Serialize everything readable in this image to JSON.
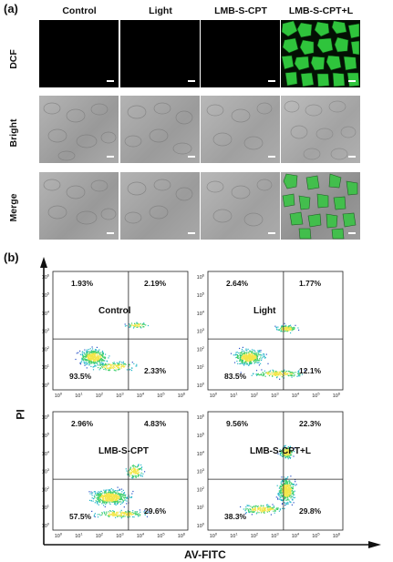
{
  "panel_a": {
    "label": "(a)",
    "columns": [
      "Control",
      "Light",
      "LMB-S-CPT",
      "LMB-S-CPT+L"
    ],
    "rows": [
      "DCF",
      "Bright",
      "Merge"
    ]
  },
  "panel_b": {
    "label": "(b)",
    "x_axis_title": "AV-FITC",
    "y_axis_title": "PI",
    "tick_labels": [
      "10",
      "10",
      "10",
      "10",
      "10",
      "10",
      "10"
    ],
    "tick_exponents": [
      "0",
      "1",
      "2",
      "3",
      "4",
      "5",
      "6"
    ],
    "plots": [
      {
        "sample": "Control",
        "ul": "1.93%",
        "ur": "2.19%",
        "ll": "93.5%",
        "lr": "2.33%"
      },
      {
        "sample": "Light",
        "ul": "2.64%",
        "ur": "1.77%",
        "ll": "83.5%",
        "lr": "12.1%"
      },
      {
        "sample": "LMB-S-CPT",
        "ul": "2.96%",
        "ur": "4.83%",
        "ll": "57.5%",
        "lr": "29.6%"
      },
      {
        "sample": "LMB-S-CPT+L",
        "ul": "9.56%",
        "ur": "22.3%",
        "ll": "38.3%",
        "lr": "29.8%"
      }
    ]
  },
  "colors": {
    "fluor_green": "#2fc43c",
    "dark_bg": "#000000",
    "gray_bg": "#a8a8a8"
  }
}
